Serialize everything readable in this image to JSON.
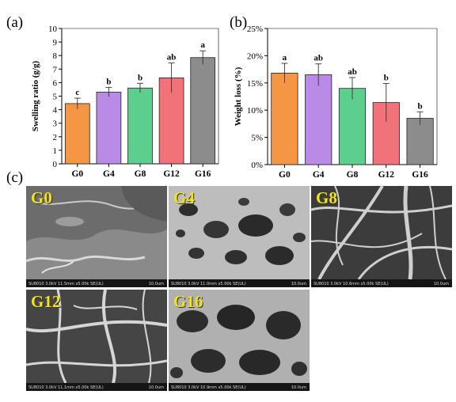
{
  "panels": {
    "a": "(a)",
    "b": "(b)",
    "c": "(c)"
  },
  "chart_data": [
    {
      "type": "bar",
      "categories": [
        "G0",
        "G4",
        "G8",
        "G12",
        "G16"
      ],
      "values": [
        4.45,
        5.3,
        5.6,
        6.35,
        7.85
      ],
      "errors": [
        0.4,
        0.35,
        0.35,
        1.1,
        0.5
      ],
      "letters": [
        "c",
        "b",
        "b",
        "ab",
        "a"
      ],
      "colors": [
        "#f59645",
        "#b98ae6",
        "#5dcf8c",
        "#f17278",
        "#8c8c8c"
      ],
      "ylabel": "Swelling ratio (g/g)",
      "ylim": [
        0,
        10
      ],
      "yticks": [
        "0",
        "1",
        "2",
        "3",
        "4",
        "5",
        "6",
        "7",
        "8",
        "9",
        "10"
      ]
    },
    {
      "type": "bar",
      "categories": [
        "G0",
        "G4",
        "G8",
        "G12",
        "G16"
      ],
      "values": [
        16.8,
        16.5,
        14.0,
        11.4,
        8.5
      ],
      "errors": [
        1.8,
        2.0,
        2.0,
        3.5,
        1.2
      ],
      "letters": [
        "a",
        "ab",
        "ab",
        "b",
        "b"
      ],
      "colors": [
        "#f59645",
        "#b98ae6",
        "#5dcf8c",
        "#f17278",
        "#8c8c8c"
      ],
      "ylabel": "Weight loss (%)",
      "ylim": [
        0,
        25
      ],
      "yticks": [
        "0%",
        "5%",
        "10%",
        "15%",
        "20%",
        "25%"
      ]
    }
  ],
  "micrographs": [
    {
      "label": "G0",
      "meta": "SU8010 3.0kV 11.5mm x5.00k SE(UL)",
      "scale": "10.0um"
    },
    {
      "label": "G4",
      "meta": "SU8010 3.0kV 11.0mm x5.00k SE(UL)",
      "scale": "10.0um"
    },
    {
      "label": "G8",
      "meta": "SU8010 3.0kV 10.6mm x5.00k SE(UL)",
      "scale": "10.0um"
    },
    {
      "label": "G12",
      "meta": "SU8010 3.0kV 11.1mm x5.00k SE(UL)",
      "scale": "10.0um"
    },
    {
      "label": "G16",
      "meta": "SU8010 3.0kV 10.9mm x5.00k SE(UL)",
      "scale": "10.0um"
    }
  ]
}
